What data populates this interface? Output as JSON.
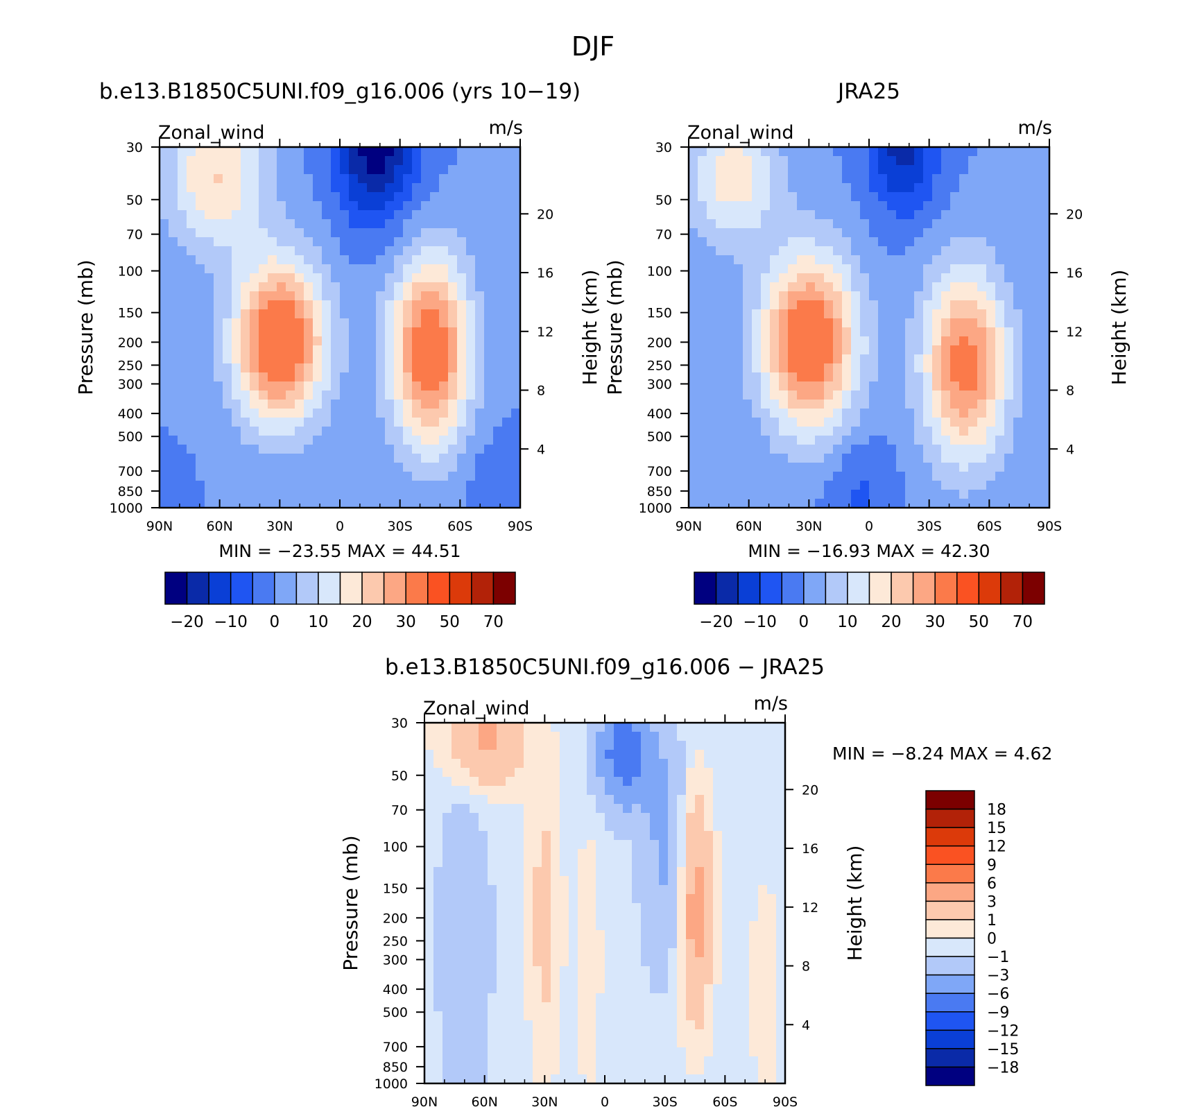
{
  "figure": {
    "title": "DJF"
  },
  "colors": {
    "main_scale": [
      "#000080",
      "#0a2aa8",
      "#0a3fd6",
      "#1f55f2",
      "#4a7af2",
      "#7fa7f7",
      "#b2c9f9",
      "#d8e7fb",
      "#fde9d8",
      "#fcc9ae",
      "#fca784",
      "#fb7a4a",
      "#fa5222",
      "#dc3a0a",
      "#b22208",
      "#7c0000"
    ],
    "diff_scale": [
      "#000080",
      "#0a2aa8",
      "#0a3fd6",
      "#1f55f2",
      "#4a7af2",
      "#7fa7f7",
      "#b2c9f9",
      "#d8e7fb",
      "#fde9d8",
      "#fcc9ae",
      "#fca784",
      "#fb7a4a",
      "#fa5222",
      "#dc3a0a",
      "#b22208",
      "#7c0000"
    ]
  },
  "chart_data": [
    {
      "type": "heatmap",
      "title": "b.e13.B1850C5UNI.f09_g16.006 (yrs 10-19)",
      "left_label": "Zonal_wind",
      "right_label": "m/s",
      "xlabel": "",
      "ylabel": "Pressure (mb)",
      "ylabel_right": "Height (km)",
      "x_ticks": [
        "90N",
        "60N",
        "30N",
        "0",
        "30S",
        "60S",
        "90S"
      ],
      "x_tick_values": [
        90,
        60,
        30,
        0,
        -30,
        -60,
        -90
      ],
      "xlim": [
        90,
        -90
      ],
      "y_ticks": [
        "30",
        "50",
        "70",
        "100",
        "150",
        "200",
        "250",
        "300",
        "400",
        "500",
        "700",
        "850",
        "1000"
      ],
      "y_tick_values": [
        30,
        50,
        70,
        100,
        150,
        200,
        250,
        300,
        400,
        500,
        700,
        850,
        1000
      ],
      "ylim": [
        1000,
        30
      ],
      "y_scale": "log",
      "right_ticks": [
        "4",
        "8",
        "12",
        "16",
        "20"
      ],
      "right_tick_values": [
        4,
        8,
        12,
        16,
        20
      ],
      "stats": "MIN = -23.55   MAX =  44.51",
      "colorbar_labels": [
        "-20",
        "-10",
        "0",
        "10",
        "20",
        "30",
        "50",
        "70"
      ],
      "colorbar_levels": [
        -25,
        -20,
        -15,
        -10,
        -5,
        0,
        5,
        10,
        15,
        20,
        25,
        30,
        40,
        50,
        60,
        70
      ],
      "base_level": 0,
      "features": [
        {
          "lat": 30,
          "p": 200,
          "value": 40,
          "lat_w": 16,
          "p_w": 0.55
        },
        {
          "lat": 62,
          "p": 40,
          "value": 20,
          "lat_w": 18,
          "p_w": 0.5
        },
        {
          "lat": -45,
          "p": 220,
          "value": 37,
          "lat_w": 14,
          "p_w": 0.65
        },
        {
          "lat": -18,
          "p": 30,
          "value": -23,
          "lat_w": 14,
          "p_w": 0.5
        },
        {
          "lat": -80,
          "p": 850,
          "value": -5,
          "lat_w": 12,
          "p_w": 0.35
        },
        {
          "lat": 85,
          "p": 900,
          "value": -4,
          "lat_w": 6,
          "p_w": 0.2
        }
      ]
    },
    {
      "type": "heatmap",
      "title": "JRA25",
      "left_label": "Zonal_wind",
      "right_label": "m/s",
      "xlabel": "",
      "ylabel": "Pressure (mb)",
      "ylabel_right": "Height (km)",
      "x_ticks": [
        "90N",
        "60N",
        "30N",
        "0",
        "30S",
        "60S",
        "90S"
      ],
      "x_tick_values": [
        90,
        60,
        30,
        0,
        -30,
        -60,
        -90
      ],
      "xlim": [
        90,
        -90
      ],
      "y_ticks": [
        "30",
        "50",
        "70",
        "100",
        "150",
        "200",
        "250",
        "300",
        "400",
        "500",
        "700",
        "850",
        "1000"
      ],
      "y_tick_values": [
        30,
        50,
        70,
        100,
        150,
        200,
        250,
        300,
        400,
        500,
        700,
        850,
        1000
      ],
      "ylim": [
        1000,
        30
      ],
      "y_scale": "log",
      "right_ticks": [
        "4",
        "8",
        "12",
        "16",
        "20"
      ],
      "right_tick_values": [
        4,
        8,
        12,
        16,
        20
      ],
      "stats": "MIN = -16.93   MAX =  42.30",
      "colorbar_labels": [
        "-20",
        "-10",
        "0",
        "10",
        "20",
        "30",
        "50",
        "70"
      ],
      "colorbar_levels": [
        -25,
        -20,
        -15,
        -10,
        -5,
        0,
        5,
        10,
        15,
        20,
        25,
        30,
        40,
        50,
        60,
        70
      ],
      "base_level": 0,
      "features": [
        {
          "lat": 30,
          "p": 200,
          "value": 38,
          "lat_w": 17,
          "p_w": 0.6
        },
        {
          "lat": 68,
          "p": 40,
          "value": 18,
          "lat_w": 16,
          "p_w": 0.45
        },
        {
          "lat": -48,
          "p": 250,
          "value": 33,
          "lat_w": 15,
          "p_w": 0.65
        },
        {
          "lat": -17,
          "p": 30,
          "value": -17,
          "lat_w": 12,
          "p_w": 0.45
        },
        {
          "lat": 5,
          "p": 850,
          "value": -6,
          "lat_w": 12,
          "p_w": 0.4
        }
      ]
    },
    {
      "type": "heatmap",
      "title": "b.e13.B1850C5UNI.f09_g16.006 - JRA25",
      "left_label": "Zonal_wind",
      "right_label": "m/s",
      "xlabel": "",
      "ylabel": "Pressure (mb)",
      "ylabel_right": "Height (km)",
      "x_ticks": [
        "90N",
        "60N",
        "30N",
        "0",
        "30S",
        "60S",
        "90S"
      ],
      "x_tick_values": [
        90,
        60,
        30,
        0,
        -30,
        -60,
        -90
      ],
      "xlim": [
        90,
        -90
      ],
      "y_ticks": [
        "30",
        "50",
        "70",
        "100",
        "150",
        "200",
        "250",
        "300",
        "400",
        "500",
        "700",
        "850",
        "1000"
      ],
      "y_tick_values": [
        30,
        50,
        70,
        100,
        150,
        200,
        250,
        300,
        400,
        500,
        700,
        850,
        1000
      ],
      "ylim": [
        1000,
        30
      ],
      "y_scale": "log",
      "right_ticks": [
        "4",
        "8",
        "12",
        "16",
        "20"
      ],
      "right_tick_values": [
        4,
        8,
        12,
        16,
        20
      ],
      "stats": "MIN =    -8.24   MAX =     4.62",
      "colorbar_labels": [
        "18",
        "15",
        "12",
        "9",
        "6",
        "3",
        "1",
        "0",
        "-1",
        "-3",
        "-6",
        "-9",
        "-12",
        "-15",
        "-18"
      ],
      "colorbar_levels": [
        -21,
        -18,
        -15,
        -12,
        -9,
        -6,
        -3,
        -1,
        0,
        1,
        3,
        6,
        9,
        12,
        15,
        18
      ],
      "base_level": -0.5,
      "features": [
        {
          "lat": 60,
          "p": 35,
          "value": 4,
          "lat_w": 14,
          "p_w": 0.35
        },
        {
          "lat": 30,
          "p": 200,
          "value": 2,
          "lat_w": 6,
          "p_w": 1.1
        },
        {
          "lat": 8,
          "p": 300,
          "value": 1.5,
          "lat_w": 4,
          "p_w": 0.9
        },
        {
          "lat": -45,
          "p": 180,
          "value": 4.6,
          "lat_w": 6,
          "p_w": 0.8
        },
        {
          "lat": -80,
          "p": 400,
          "value": 1.5,
          "lat_w": 5,
          "p_w": 0.7
        },
        {
          "lat": -10,
          "p": 40,
          "value": -8,
          "lat_w": 9,
          "p_w": 0.35
        },
        {
          "lat": 70,
          "p": 250,
          "value": -2.5,
          "lat_w": 8,
          "p_w": 1.0
        },
        {
          "lat": -30,
          "p": 100,
          "value": -3,
          "lat_w": 8,
          "p_w": 0.8
        }
      ]
    }
  ]
}
